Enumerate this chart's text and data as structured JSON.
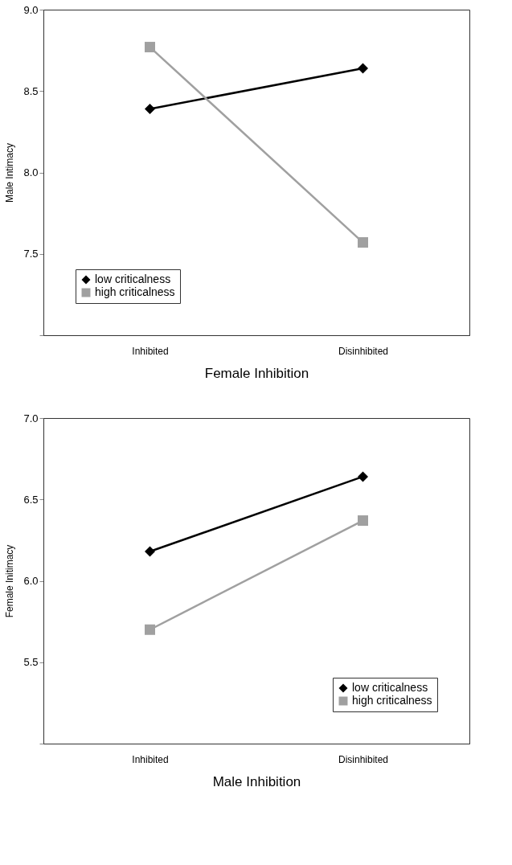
{
  "chart_data": [
    {
      "type": "line",
      "xlabel": "Female Inhibition",
      "ylabel": "Male Intimacy",
      "categories": [
        "Inhibited",
        "Disinhibited"
      ],
      "series": [
        {
          "name": "low criticalness",
          "color": "#000000",
          "marker": "diamond",
          "values": [
            8.39,
            8.64
          ]
        },
        {
          "name": "high criticalness",
          "color": "#a0a0a0",
          "marker": "square",
          "values": [
            8.77,
            7.57
          ]
        }
      ],
      "ylim": [
        7.0,
        9.0
      ],
      "yticks": [
        {
          "value": 7.0,
          "label": null
        },
        7.5,
        {
          "value": 8.0,
          "label": "8.0"
        },
        8.5,
        {
          "value": 9.0,
          "label": "9.0"
        }
      ],
      "grid": false,
      "legend": "bottom left"
    },
    {
      "type": "line",
      "xlabel": "Male Inhibition",
      "ylabel": "Female Initimacy",
      "categories": [
        "Inhibited",
        "Disinhibited"
      ],
      "series": [
        {
          "name": "low criticalness",
          "color": "#000000",
          "marker": "diamond",
          "values": [
            6.18,
            6.64
          ]
        },
        {
          "name": "high criticalness",
          "color": "#a0a0a0",
          "marker": "square",
          "values": [
            5.7,
            6.37
          ]
        }
      ],
      "ylim": [
        5.0,
        7.0
      ],
      "yticks": [
        {
          "value": 5.0,
          "label": null
        },
        5.5,
        {
          "value": 6.0,
          "label": "6.0"
        },
        6.5,
        {
          "value": 7.0,
          "label": "7.0"
        }
      ],
      "grid": false,
      "legend": "bottom right"
    }
  ]
}
